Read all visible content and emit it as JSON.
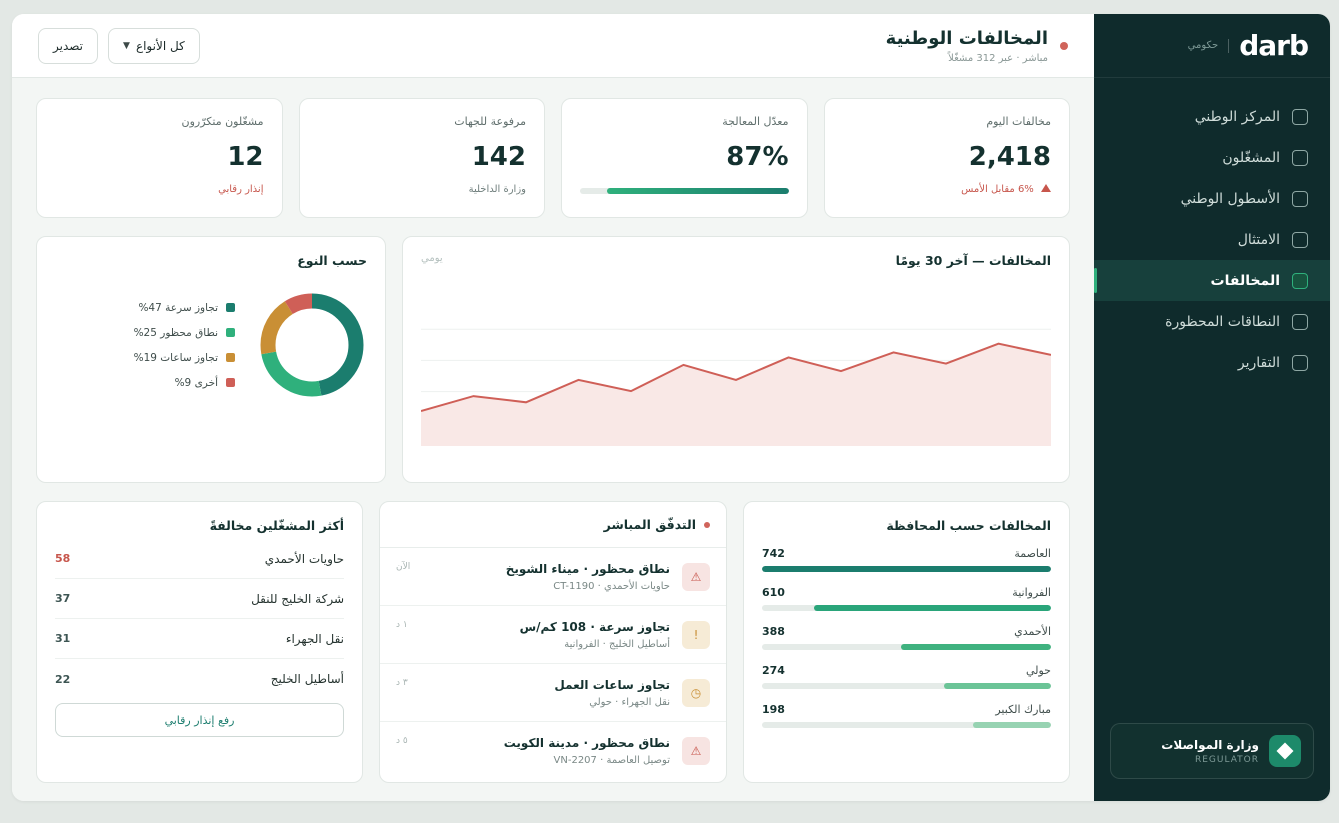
{
  "colors": {
    "sidebar_bg": "#0f2b2c",
    "accent": "#2fb07c",
    "teal": "#1b7d6e",
    "alert": "#c7564c",
    "amber": "#c98f35"
  },
  "brand": {
    "logo": "darb",
    "sub": "حكومي"
  },
  "sidebar": {
    "items": [
      {
        "label": "المركز الوطني",
        "active": false
      },
      {
        "label": "المشغّلون",
        "active": false
      },
      {
        "label": "الأسطول الوطني",
        "active": false
      },
      {
        "label": "الامتثال",
        "active": false
      },
      {
        "label": "المخالفات",
        "active": true
      },
      {
        "label": "النطاقات المحظورة",
        "active": false
      },
      {
        "label": "التقارير",
        "active": false
      }
    ],
    "regulator": {
      "name": "وزارة المواصلات",
      "tag": "REGULATOR"
    }
  },
  "header": {
    "title": "المخالفات الوطنية",
    "subtitle": "مباشر · عبر 312 مشغّلاً",
    "filter_label": "كل الأنواع",
    "export_label": "تصدير"
  },
  "kpis": [
    {
      "label": "مخالفات اليوم",
      "value": "2,418",
      "foot": "6% مقابل الأمس",
      "foot_style": "up-red"
    },
    {
      "label": "معدّل المعالجة",
      "value": "87%",
      "progress": 0.87
    },
    {
      "label": "مرفوعة للجهات",
      "value": "142",
      "foot": "وزارة الداخلية"
    },
    {
      "label": "مشغّلون متكرّرون",
      "value": "12",
      "foot": "إنذار رقابي",
      "foot_style": "red"
    }
  ],
  "trend": {
    "title": "المخالفات — آخر 30 يومًا",
    "mode": "يومي"
  },
  "by_type": {
    "title": "حسب النوع",
    "legend": [
      "تجاوز سرعة 47%",
      "نطاق محظور 25%",
      "تجاوز ساعات 19%",
      "أخرى 9%"
    ]
  },
  "chart_data": [
    {
      "type": "area",
      "title": "المخالفات — آخر 30 يومًا",
      "x": [
        1,
        2,
        3,
        4,
        5,
        6,
        7,
        8,
        9,
        10,
        11,
        12,
        13
      ],
      "values": [
        0.28,
        0.4,
        0.35,
        0.53,
        0.44,
        0.65,
        0.53,
        0.71,
        0.6,
        0.75,
        0.66,
        0.82,
        0.73
      ],
      "ylim": [
        0,
        1.25
      ],
      "grid": true
    },
    {
      "type": "pie",
      "title": "حسب النوع",
      "categories": [
        "تجاوز سرعة",
        "نطاق محظور",
        "تجاوز ساعات",
        "أخرى"
      ],
      "values": [
        47,
        25,
        19,
        9
      ],
      "colors": [
        "#1b7d6e",
        "#2fb07c",
        "#c98f35",
        "#cf5f57"
      ]
    },
    {
      "type": "bar",
      "title": "المخالفات حسب المحافظة",
      "categories": [
        "العاصمة",
        "الفروانية",
        "الأحمدي",
        "حولي",
        "مبارك الكبير"
      ],
      "values": [
        742,
        610,
        388,
        274,
        198
      ]
    }
  ],
  "governorates": {
    "title": "المخالفات حسب المحافظة",
    "items": [
      {
        "name": "العاصمة",
        "value": "742",
        "fill": 1.0,
        "color": "#1b7d6e"
      },
      {
        "name": "الفروانية",
        "value": "610",
        "fill": 0.82,
        "color": "#2aa57a"
      },
      {
        "name": "الأحمدي",
        "value": "388",
        "fill": 0.52,
        "color": "#3fb27f"
      },
      {
        "name": "حولي",
        "value": "274",
        "fill": 0.37,
        "color": "#6bc497"
      },
      {
        "name": "مبارك الكبير",
        "value": "198",
        "fill": 0.27,
        "color": "#97d3b2"
      }
    ]
  },
  "feed": {
    "title": "التدفّق المباشر",
    "items": [
      {
        "title": "نطاق محظور · ميناء الشويخ",
        "sub": "حاويات الأحمدي · CT-1190",
        "time": "الآن",
        "icon": "warning-icon"
      },
      {
        "title": "تجاوز سرعة · 108 كم/س",
        "sub": "أساطيل الخليج · الفروانية",
        "time": "١ د",
        "icon": "speed-icon"
      },
      {
        "title": "تجاوز ساعات العمل",
        "sub": "نقل الجهراء · حولي",
        "time": "٣ د",
        "icon": "clock-icon"
      },
      {
        "title": "نطاق محظور · مدينة الكويت",
        "sub": "توصيل العاصمة · VN-2207",
        "time": "٥ د",
        "icon": "warning-icon"
      }
    ]
  },
  "top_operators": {
    "title": "أكثر المشغّلين مخالفةً",
    "items": [
      {
        "name": "حاويات الأحمدي",
        "count": "58",
        "red": true
      },
      {
        "name": "شركة الخليج للنقل",
        "count": "37",
        "red": false
      },
      {
        "name": "نقل الجهراء",
        "count": "31",
        "red": false
      },
      {
        "name": "أساطيل الخليج",
        "count": "22",
        "red": false
      }
    ],
    "action_label": "رفع إنذار رقابي"
  }
}
